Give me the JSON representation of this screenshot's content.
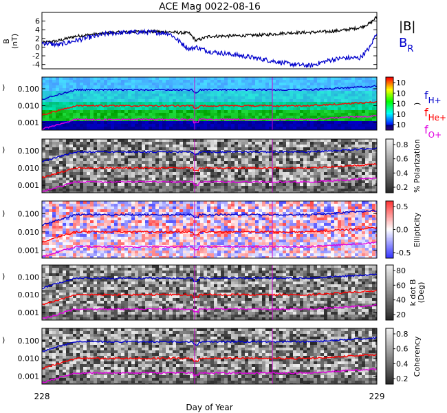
{
  "chart_data": [
    {
      "type": "line",
      "title": "ACE Mag 0022-08-16",
      "ylabel_line1": "B",
      "ylabel_line2": "(nT)",
      "yticks": [
        "6",
        "4",
        "2",
        "0",
        "-2",
        "-4"
      ],
      "ylim": [
        -5,
        8
      ],
      "legend": [
        "|B|",
        "B_R"
      ],
      "legend_display": [
        {
          "main": "|B|",
          "sub": ""
        },
        {
          "main": "B",
          "sub": "R"
        }
      ],
      "series": [
        {
          "name": "|B|",
          "color": "#000000",
          "x": [
            228.0,
            228.05,
            228.1,
            228.2,
            228.3,
            228.38,
            228.44,
            228.46,
            228.5,
            228.58,
            228.66,
            228.74,
            228.8,
            228.86,
            228.9,
            228.95,
            228.98,
            229.0
          ],
          "values": [
            1.0,
            1.5,
            2.5,
            3.3,
            3.6,
            3.5,
            3.2,
            1.5,
            2.5,
            2.6,
            2.8,
            3.3,
            3.4,
            3.6,
            3.9,
            4.5,
            5.5,
            7.0
          ]
        },
        {
          "name": "B_R",
          "color": "#0000cc",
          "x": [
            228.0,
            228.05,
            228.1,
            228.2,
            228.3,
            228.38,
            228.44,
            228.46,
            228.5,
            228.58,
            228.66,
            228.74,
            228.8,
            228.86,
            228.9,
            228.95,
            228.98,
            229.0
          ],
          "values": [
            1.0,
            0.5,
            1.5,
            3.2,
            3.5,
            3.2,
            -0.5,
            0.0,
            -1.0,
            -1.8,
            -2.8,
            -3.9,
            -4.3,
            -3.0,
            -2.5,
            -2.5,
            0.0,
            3.5
          ]
        }
      ]
    },
    {
      "type": "heatmap",
      "ytick_labels": [
        "0.100",
        "0.010",
        "0.001"
      ],
      "colorbar_ticks": [
        "10",
        "10",
        "10",
        "10",
        "10"
      ],
      "colorbar_label": ")",
      "colorscale": "rainbow",
      "lines": [
        "f_H+",
        "f_He+",
        "f_O+"
      ],
      "line_labels": [
        {
          "main": "f",
          "sub": "H+",
          "color": "#0000cc"
        },
        {
          "main": "f",
          "sub": "He+",
          "color": "#ff0000"
        },
        {
          "main": "f",
          "sub": "O+",
          "color": "#e000e0"
        }
      ]
    },
    {
      "type": "heatmap",
      "ytick_labels": [
        "0.100",
        "0.010",
        "0.001"
      ],
      "colorbar_ticks": [
        "0.8",
        "0.6",
        "0.4",
        "0.2"
      ],
      "colorbar_label": "% Polarization",
      "colorscale": "gray",
      "lines": [
        "f_H+",
        "f_He+",
        "f_O+"
      ]
    },
    {
      "type": "heatmap",
      "ytick_labels": [
        "0.100",
        "0.010",
        "0.001"
      ],
      "colorbar_ticks": [
        "0.5",
        "0.0",
        "-0.5"
      ],
      "colorbar_label": "Ellipticity",
      "colorscale": "blue-white-red",
      "lines": [
        "f_H+",
        "f_He+",
        "f_O+"
      ]
    },
    {
      "type": "heatmap",
      "ytick_labels": [
        "0.100",
        "0.010",
        "0.001"
      ],
      "colorbar_ticks": [
        "80",
        "60",
        "40",
        "20"
      ],
      "colorbar_label_line1": "k dot B",
      "colorbar_label_line2": "(Deg)",
      "colorscale": "gray",
      "lines": [
        "f_H+",
        "f_He+",
        "f_O+"
      ]
    },
    {
      "type": "heatmap",
      "ytick_labels": [
        "0.100",
        "0.010",
        "0.001"
      ],
      "colorbar_ticks": [
        "0.8",
        "0.6",
        "0.4",
        "0.2"
      ],
      "colorbar_label": "Coherency",
      "colorscale": "gray",
      "lines": [
        "f_H+",
        "f_He+",
        "f_O+"
      ],
      "xlabel": "Day of Year",
      "xtick_labels": [
        "228",
        "229"
      ],
      "xlim": [
        228,
        229
      ]
    }
  ]
}
